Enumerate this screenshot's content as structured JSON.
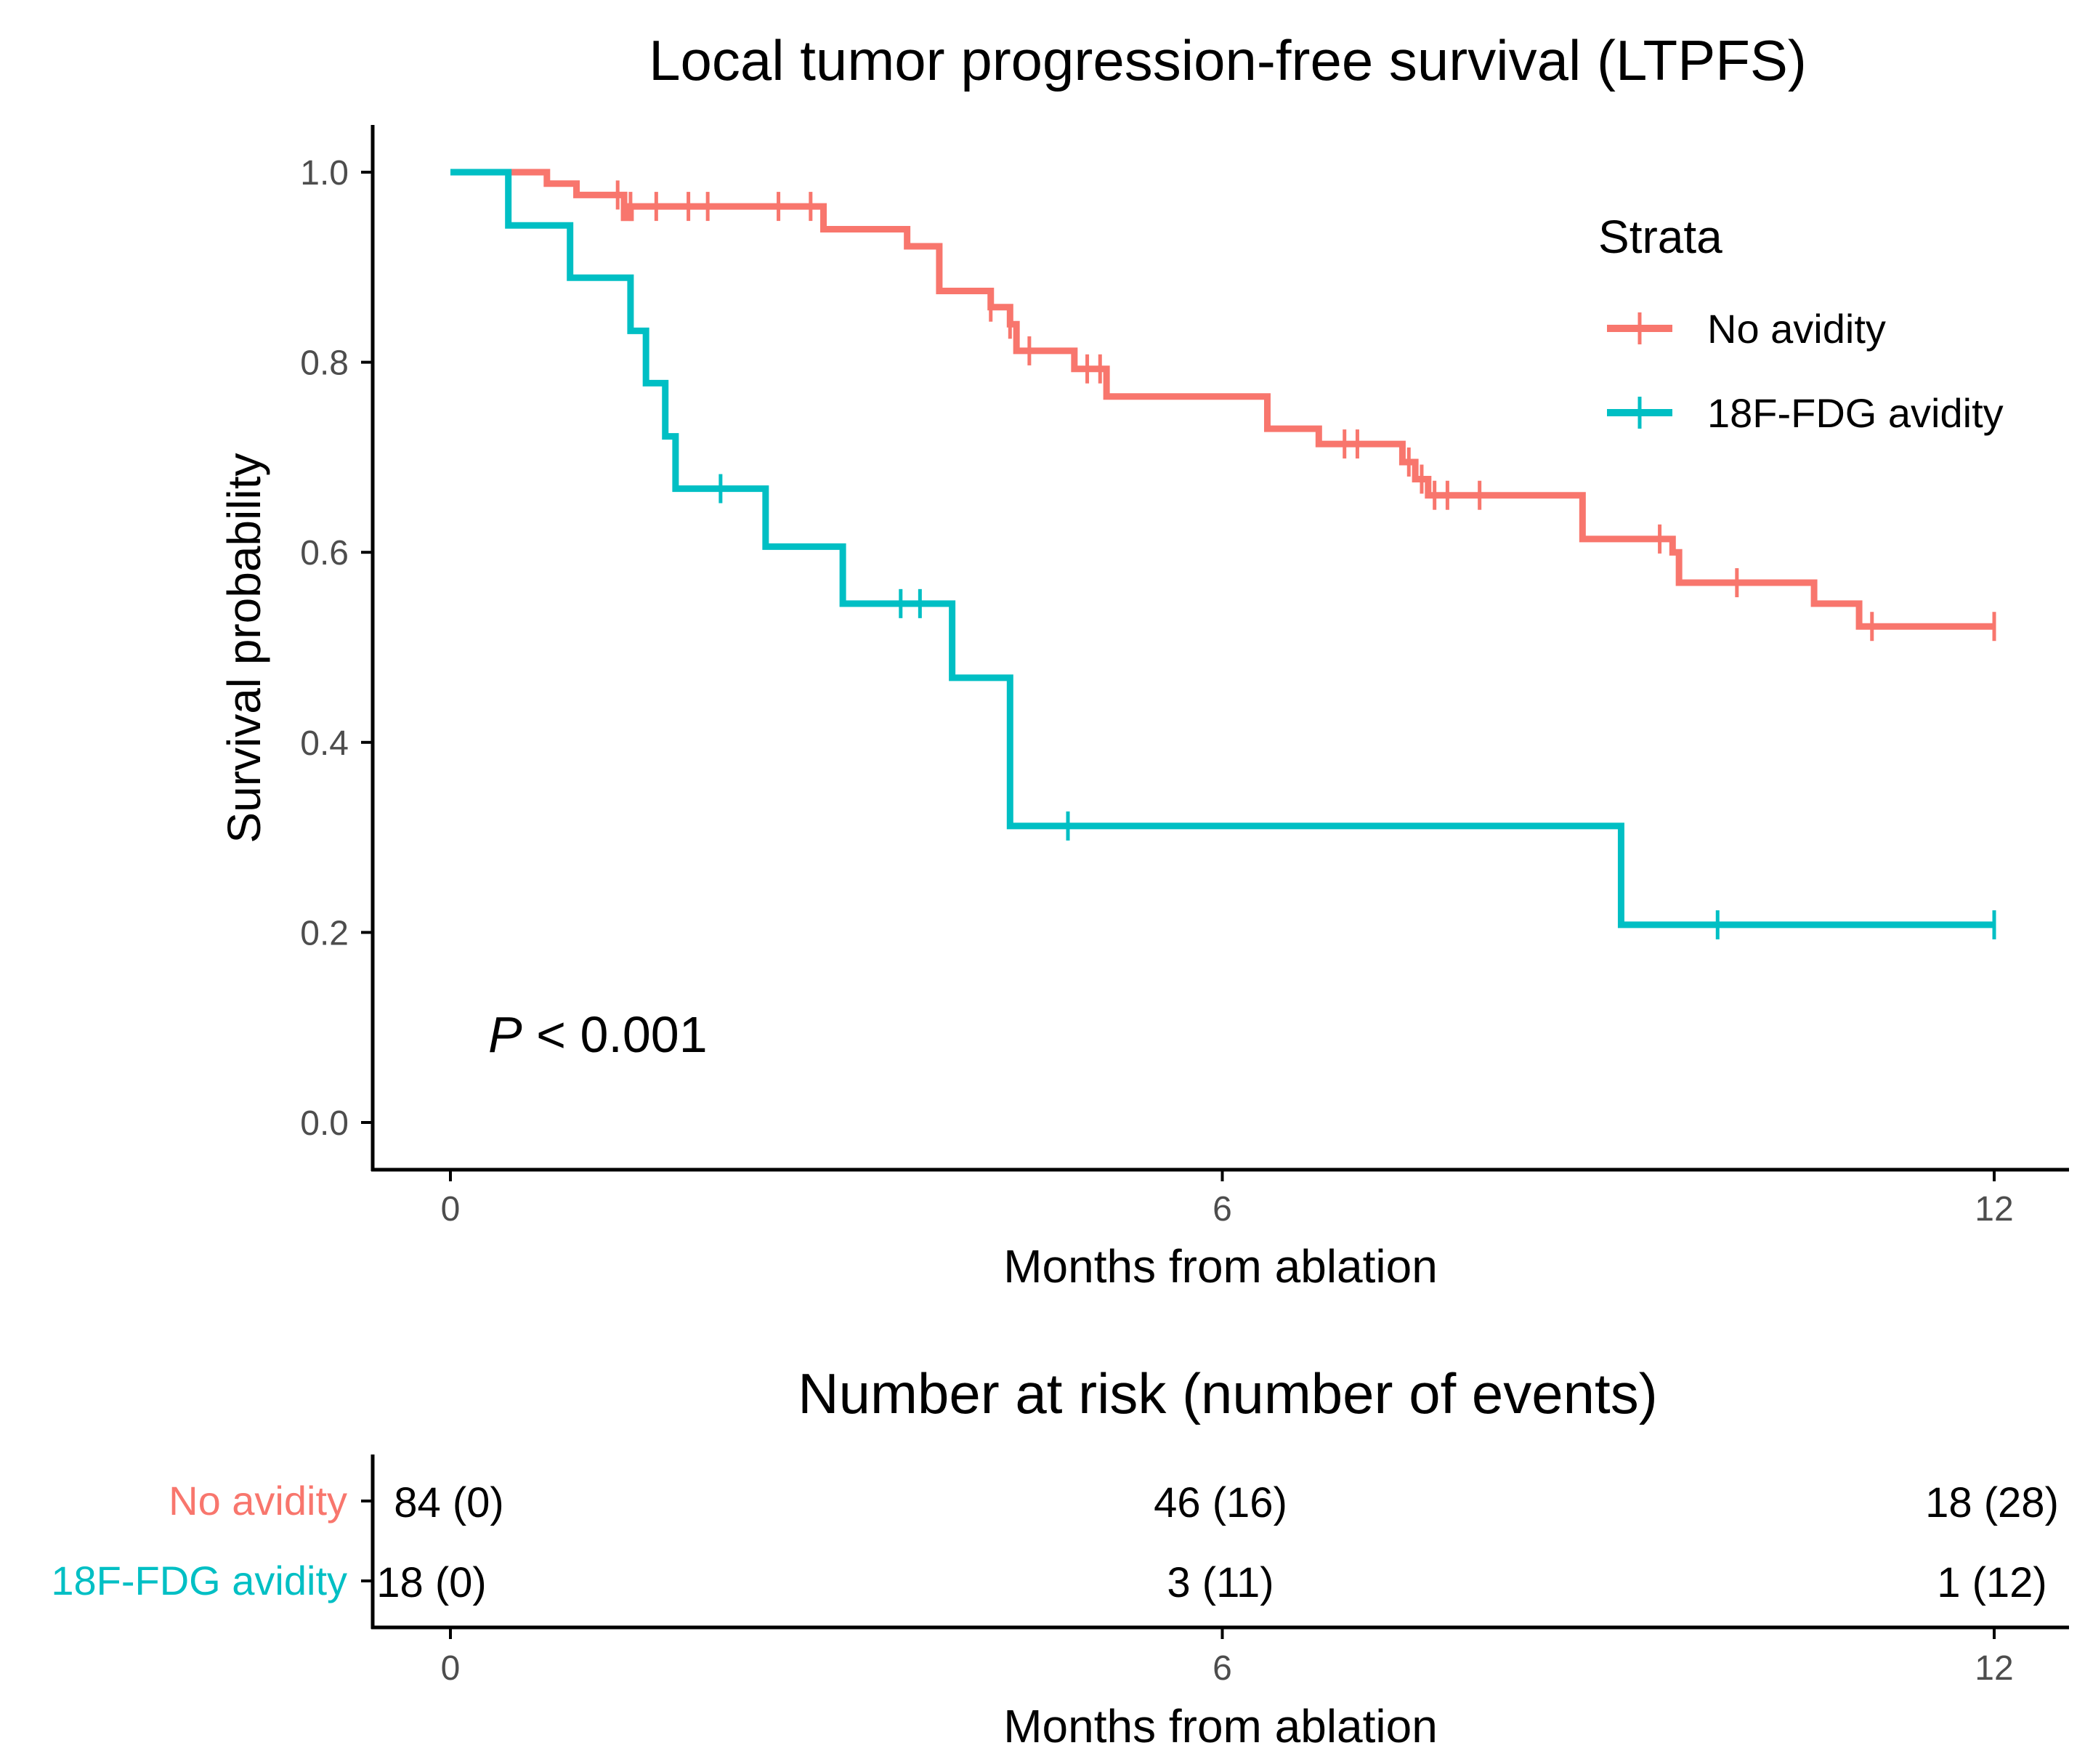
{
  "colors": {
    "no_avidity": "#F8766D",
    "fdg_avidity": "#00BFC4",
    "axis": "#000000",
    "tick_text": "#4d4d4d"
  },
  "chart_data": {
    "type": "line",
    "subtype": "kaplan-meier-step",
    "title": "Local tumor progression-free  survival (LTPFS)",
    "xlabel": "Months from ablation",
    "ylabel": "Survival probability",
    "xlim": [
      0,
      12
    ],
    "ylim": [
      0,
      1
    ],
    "xticks": [
      "0",
      "6",
      "12"
    ],
    "xtick_values": [
      0,
      6,
      12
    ],
    "yticks": [
      "0.0",
      "0.2",
      "0.4",
      "0.6",
      "0.8",
      "1.0"
    ],
    "ytick_values": [
      0,
      0.2,
      0.4,
      0.6,
      0.8,
      1.0
    ],
    "legend": {
      "title": "Strata",
      "position": "top-right"
    },
    "annotation": {
      "p_symbol": "P",
      "p_text": " < 0.001"
    },
    "series": [
      {
        "name": "No avidity",
        "color_key": "no_avidity",
        "steps": [
          [
            0,
            1.0
          ],
          [
            0.75,
            0.988
          ],
          [
            0.98,
            0.976
          ],
          [
            1.4,
            0.964
          ],
          [
            1.35,
            0.952
          ],
          [
            2.9,
            0.94
          ],
          [
            3.55,
            0.922
          ],
          [
            3.8,
            0.875
          ],
          [
            4.2,
            0.858
          ],
          [
            4.35,
            0.84
          ],
          [
            4.4,
            0.812
          ],
          [
            4.85,
            0.793
          ],
          [
            5.1,
            0.764
          ],
          [
            6.35,
            0.73
          ],
          [
            6.75,
            0.714
          ],
          [
            7.4,
            0.695
          ],
          [
            7.5,
            0.677
          ],
          [
            7.6,
            0.66
          ],
          [
            8.8,
            0.614
          ],
          [
            9.5,
            0.6
          ],
          [
            9.55,
            0.568
          ],
          [
            10.6,
            0.546
          ],
          [
            10.95,
            0.522
          ]
        ],
        "end_x": 12.0,
        "censor_times": [
          1.3,
          1.4,
          1.6,
          1.85,
          2.0,
          2.55,
          2.8,
          4.2,
          4.35,
          4.5,
          4.95,
          5.05,
          6.95,
          7.05,
          7.45,
          7.55,
          7.65,
          7.75,
          8.0,
          9.4,
          10.0,
          11.05,
          12.0
        ]
      },
      {
        "name": "18F-FDG avidity",
        "color_key": "fdg_avidity",
        "steps": [
          [
            0,
            1.0
          ],
          [
            0.45,
            0.944
          ],
          [
            0.93,
            0.889
          ],
          [
            1.4,
            0.833
          ],
          [
            1.52,
            0.778
          ],
          [
            1.67,
            0.722
          ],
          [
            1.75,
            0.667
          ],
          [
            2.45,
            0.606
          ],
          [
            3.05,
            0.546
          ],
          [
            3.9,
            0.468
          ],
          [
            4.35,
            0.312
          ],
          [
            9.1,
            0.208
          ]
        ],
        "end_x": 12.0,
        "censor_times": [
          2.1,
          3.5,
          3.65,
          4.8,
          9.85,
          12.0
        ]
      }
    ]
  },
  "risk_table": {
    "title": "Number at risk (number of events)",
    "xlabel": "Months from ablation",
    "xticks": [
      "0",
      "6",
      "12"
    ],
    "rows": [
      {
        "label": "No avidity",
        "color_key": "no_avidity",
        "cells": [
          "84 (0)",
          "46 (16)",
          "18 (28)"
        ]
      },
      {
        "label": "18F-FDG  avidity",
        "color_key": "fdg_avidity",
        "cells": [
          "18 (0)",
          "3 (11)",
          "1 (12)"
        ]
      }
    ]
  }
}
